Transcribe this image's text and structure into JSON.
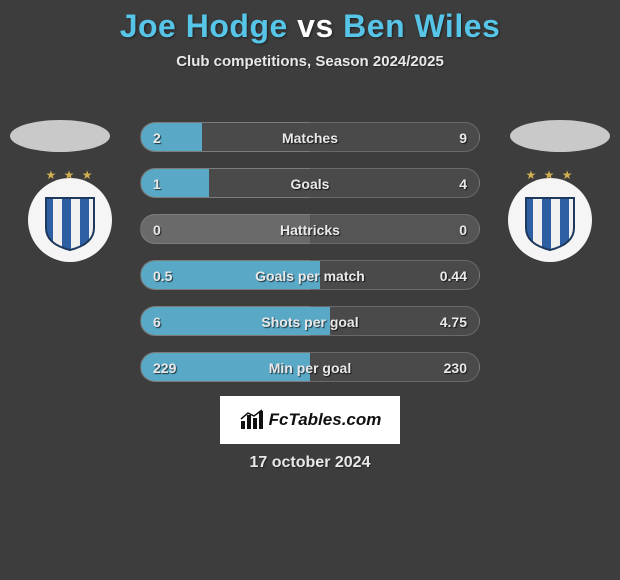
{
  "title": {
    "player1": "Joe Hodge",
    "vs": "vs",
    "player2": "Ben Wiles",
    "player1_color": "#57c5e8",
    "player2_color": "#57c5e8"
  },
  "subtitle": "Club competitions, Season 2024/2025",
  "date": "17 october 2024",
  "footer_brand": "FcTables.com",
  "background_color": "#3d3d3d",
  "bar": {
    "track_color_left": "#6a6a6a",
    "track_color_right": "#555555",
    "left_color": "#58a8c6",
    "right_color": "#4a4a4a",
    "height": 30,
    "radius": 15,
    "label_fontsize": 14,
    "label_color": "#e9e9e9"
  },
  "rows": [
    {
      "label": "Matches",
      "v1": "2",
      "v2": "9",
      "left_pct": 18,
      "right_pct": 82
    },
    {
      "label": "Goals",
      "v1": "1",
      "v2": "4",
      "left_pct": 20,
      "right_pct": 80
    },
    {
      "label": "Hattricks",
      "v1": "0",
      "v2": "0",
      "left_pct": 0,
      "right_pct": 0
    },
    {
      "label": "Goals per match",
      "v1": "0.5",
      "v2": "0.44",
      "left_pct": 53,
      "right_pct": 47
    },
    {
      "label": "Shots per goal",
      "v1": "6",
      "v2": "4.75",
      "left_pct": 56,
      "right_pct": 44
    },
    {
      "label": "Min per goal",
      "v1": "229",
      "v2": "230",
      "left_pct": 50,
      "right_pct": 50
    }
  ],
  "clubs": {
    "left": {
      "name": "huddersfield",
      "stripe_a": "#2e5fa3",
      "stripe_b": "#f0f0f0"
    },
    "right": {
      "name": "huddersfield",
      "stripe_a": "#2e5fa3",
      "stripe_b": "#f0f0f0"
    }
  }
}
